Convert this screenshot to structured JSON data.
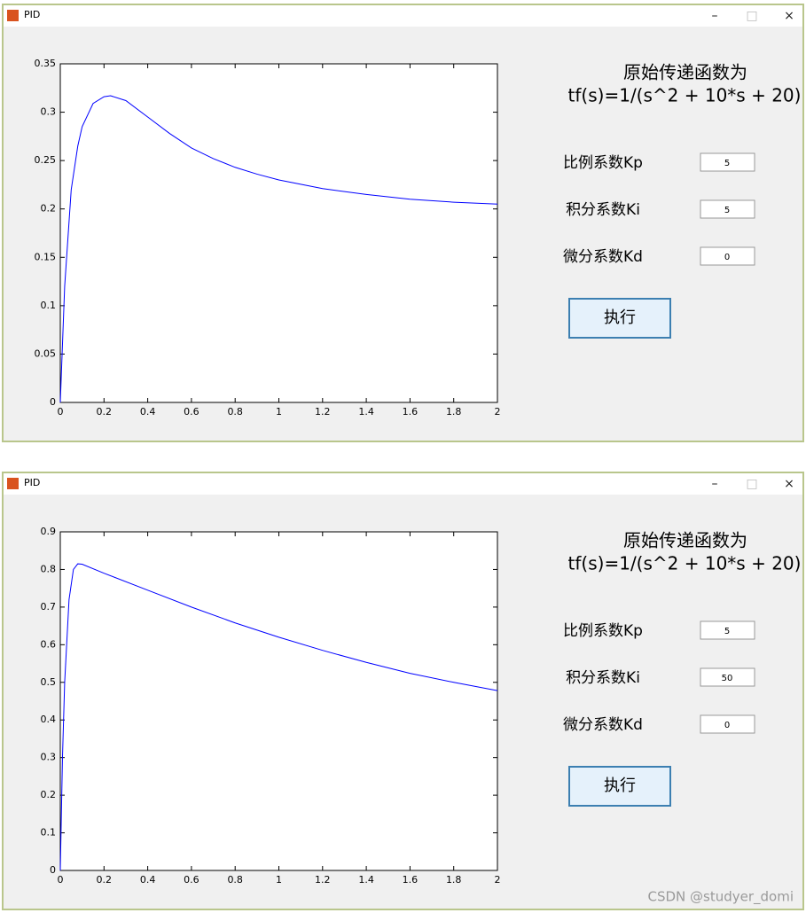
{
  "windows": [
    {
      "title": "PID",
      "controls": [
        "–",
        "□",
        "×"
      ],
      "heading": "原始传递函数为",
      "transfer_function": "tf(s)=1/(s^2 + 10*s + 20)",
      "fields": [
        {
          "label": "比例系数Kp",
          "value": 5
        },
        {
          "label": "积分系数Ki",
          "value": 5
        },
        {
          "label": "微分系数Kd",
          "value": 0
        }
      ],
      "button": "执行",
      "chart_data": {
        "type": "line",
        "x": [
          0,
          0.02,
          0.05,
          0.08,
          0.1,
          0.15,
          0.2,
          0.23,
          0.3,
          0.4,
          0.5,
          0.6,
          0.7,
          0.8,
          0.9,
          1,
          1.2,
          1.4,
          1.6,
          1.8,
          2
        ],
        "series": [
          {
            "color": "#0000ff",
            "values": [
              0,
              0.12,
              0.22,
              0.265,
              0.285,
              0.309,
              0.316,
              0.317,
              0.312,
              0.295,
              0.278,
              0.263,
              0.252,
              0.243,
              0.236,
              0.23,
              0.221,
              0.215,
              0.21,
              0.207,
              0.205
            ]
          }
        ],
        "xlim": [
          0,
          2
        ],
        "xticks": [
          0,
          0.2,
          0.4,
          0.6,
          0.8,
          1,
          1.2,
          1.4,
          1.6,
          1.8,
          2
        ],
        "ylim": [
          0,
          0.35
        ],
        "yticks": [
          0,
          0.05,
          0.1,
          0.15,
          0.2,
          0.25,
          0.3,
          0.35
        ]
      }
    },
    {
      "title": "PID",
      "controls": [
        "–",
        "□",
        "×"
      ],
      "heading": "原始传递函数为",
      "transfer_function": "tf(s)=1/(s^2 + 10*s + 20)",
      "fields": [
        {
          "label": "比例系数Kp",
          "value": 5
        },
        {
          "label": "积分系数Ki",
          "value": 50
        },
        {
          "label": "微分系数Kd",
          "value": 0
        }
      ],
      "button": "执行",
      "chart_data": {
        "type": "line",
        "x": [
          0,
          0.01,
          0.02,
          0.04,
          0.06,
          0.08,
          0.1,
          0.2,
          0.4,
          0.6,
          0.8,
          1,
          1.2,
          1.4,
          1.6,
          1.8,
          2
        ],
        "series": [
          {
            "color": "#0000ff",
            "values": [
              0,
              0.3,
              0.5,
              0.72,
              0.8,
              0.815,
              0.814,
              0.79,
              0.745,
              0.7,
              0.658,
              0.62,
              0.585,
              0.553,
              0.524,
              0.5,
              0.478
            ]
          }
        ],
        "xlim": [
          0,
          2
        ],
        "xticks": [
          0,
          0.2,
          0.4,
          0.6,
          0.8,
          1,
          1.2,
          1.4,
          1.6,
          1.8,
          2
        ],
        "ylim": [
          0,
          0.9
        ],
        "yticks": [
          0,
          0.1,
          0.2,
          0.3,
          0.4,
          0.5,
          0.6,
          0.7,
          0.8,
          0.9
        ]
      }
    }
  ],
  "watermark": "CSDN @studyer_domi"
}
